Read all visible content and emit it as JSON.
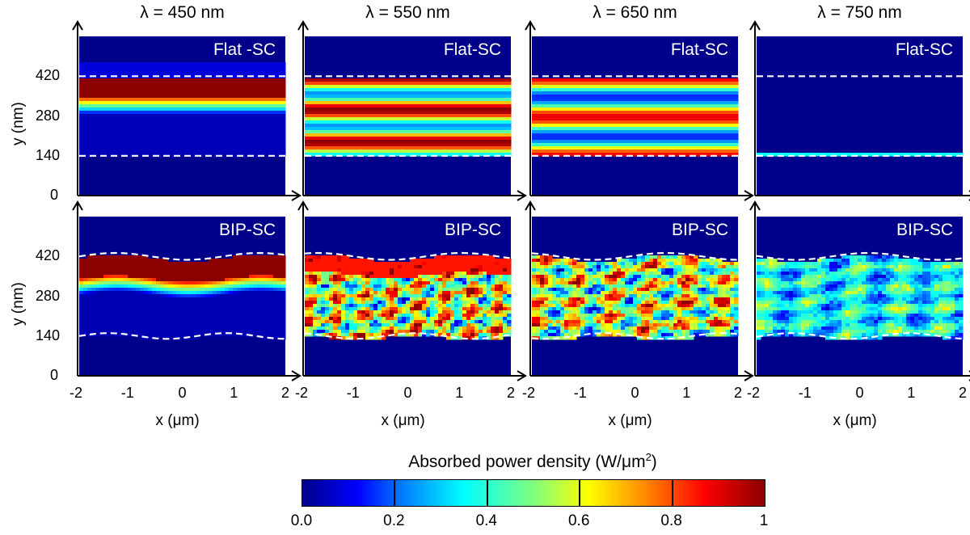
{
  "chart_data": {
    "type": "heatmap",
    "columns": [
      {
        "title": "λ = 450 nm"
      },
      {
        "title": "λ = 550 nm"
      },
      {
        "title": "λ = 650 nm"
      },
      {
        "title": "λ = 750 nm"
      }
    ],
    "rows": [
      {
        "labels": [
          "Flat -SC",
          "Flat-SC",
          "Flat-SC",
          "Flat-SC"
        ]
      },
      {
        "labels": [
          "BIP-SC",
          "BIP-SC",
          "BIP-SC",
          "BIP-SC"
        ]
      }
    ],
    "ylabel": "y (nm)",
    "xlabel": "x (μm)",
    "y_ticks": [
      "420",
      "280",
      "140",
      "0"
    ],
    "x_ticks": [
      "-2",
      "-1",
      "0",
      "1",
      "2"
    ],
    "xlim": [
      -2,
      2
    ],
    "ylim": [
      0,
      560
    ],
    "layer_bounds_nm": [
      140,
      420
    ],
    "colorbar": {
      "title": "Absorbed power density (W/μm",
      "title_sup": "2",
      "title_end": ")",
      "ticks": [
        "0.0",
        "0.2",
        "0.4",
        "0.6",
        "0.8",
        "1"
      ],
      "range": [
        0,
        1
      ],
      "colors": [
        "#00008b",
        "#0000ff",
        "#00ffff",
        "#ffff00",
        "#ff0000",
        "#8b0000"
      ]
    }
  }
}
